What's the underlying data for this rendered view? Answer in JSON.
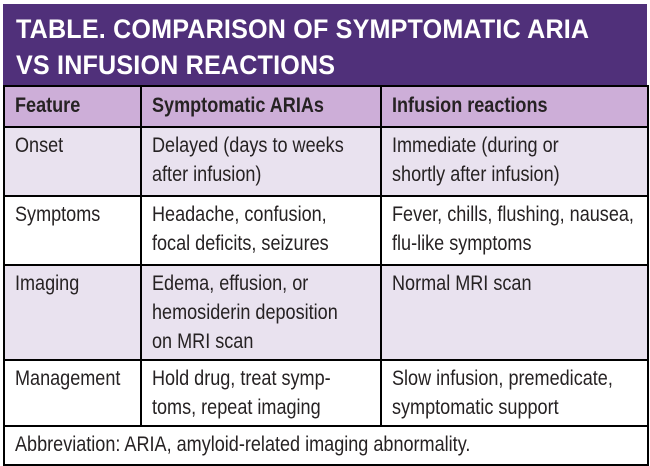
{
  "title": "TABLE. COMPARISON OF SYMPTOMATIC ARIA\nVS INFUSION REACTIONS",
  "colors": {
    "title_bg": "#50307a",
    "title_text": "#ffffff",
    "header_bg": "#cdaed8",
    "row_alt_bg": "#e9e2ef",
    "row_bg": "#ffffff",
    "border": "#000000",
    "text": "#262223"
  },
  "table": {
    "headers": {
      "feature": "Feature",
      "aria": "Symptomatic ARIAs",
      "infusion": "Infusion reactions"
    },
    "rows": [
      {
        "feature": "Onset",
        "aria": "Delayed (days to weeks\nafter infusion)",
        "infusion": "Immediate (during or\nshortly after infusion)"
      },
      {
        "feature": "Symptoms",
        "aria": "Headache, confusion,\nfocal deficits, seizures",
        "infusion": "Fever, chills, flushing, nausea,\nflu-like symptoms"
      },
      {
        "feature": "Imaging",
        "aria": "Edema, effusion, or\nhemosiderin deposition\non MRI scan",
        "infusion": "Normal MRI scan"
      },
      {
        "feature": "Management",
        "aria": "Hold drug, treat symp-\ntoms, repeat imaging",
        "infusion": "Slow infusion, premedicate,\nsymptomatic support"
      }
    ],
    "footnote": "Abbreviation: ARIA, amyloid-related imaging abnormality."
  }
}
